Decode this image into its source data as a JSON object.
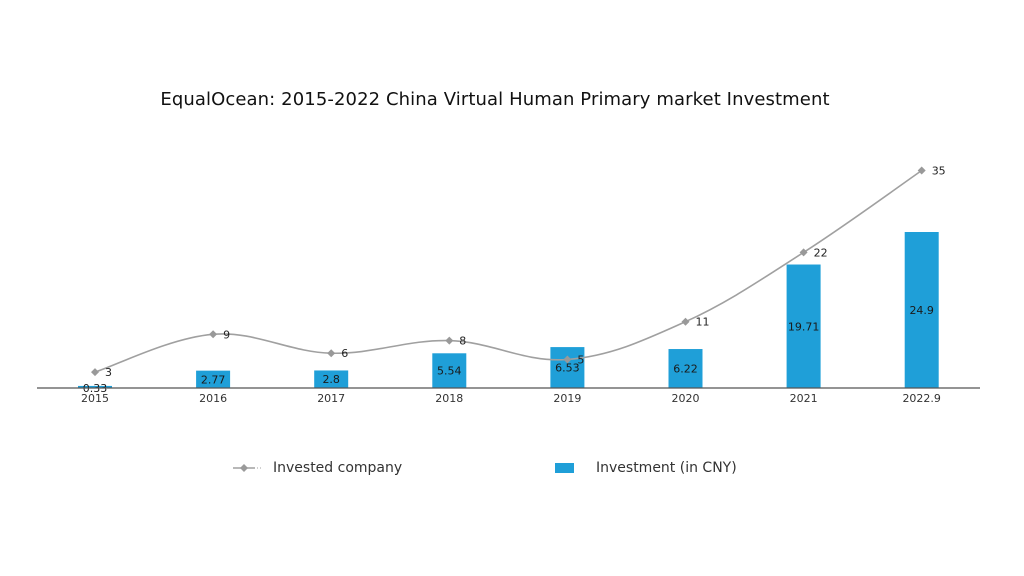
{
  "chart_data": {
    "type": "bar",
    "title": "EqualOcean: 2015-2022 China Virtual Human Primary market Investment",
    "categories": [
      "2015",
      "2016",
      "2017",
      "2018",
      "2019",
      "2020",
      "2021",
      "2022.9"
    ],
    "series": [
      {
        "name": "Investment (in CNY)",
        "type": "bar",
        "values": [
          0.33,
          2.77,
          2.8,
          5.54,
          6.53,
          6.22,
          19.71,
          24.9
        ],
        "color": "#1f9fd8"
      },
      {
        "name": "Invested company",
        "type": "line",
        "values": [
          3,
          9,
          6,
          8,
          5,
          11,
          22,
          35
        ],
        "color": "#a0a0a0",
        "marker": "diamond"
      }
    ],
    "legend_position": "bottom",
    "grid": false
  }
}
